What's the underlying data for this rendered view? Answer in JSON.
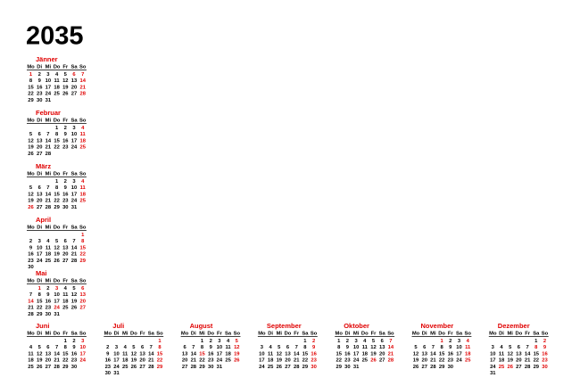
{
  "title": "2035",
  "weekdays": [
    "Mo",
    "Di",
    "Mi",
    "Do",
    "Fr",
    "Sa",
    "So"
  ],
  "highlight_color": "#e00000",
  "months": [
    {
      "name": "Jänner",
      "holidays": [
        1,
        6
      ],
      "weeks": [
        [
          1,
          2,
          3,
          4,
          5,
          6,
          7
        ],
        [
          8,
          9,
          10,
          11,
          12,
          13,
          14
        ],
        [
          15,
          16,
          17,
          18,
          19,
          20,
          21
        ],
        [
          22,
          23,
          24,
          25,
          26,
          27,
          28
        ],
        [
          29,
          30,
          31,
          null,
          null,
          null,
          null
        ]
      ]
    },
    {
      "name": "Februar",
      "holidays": [],
      "weeks": [
        [
          null,
          null,
          null,
          1,
          2,
          3,
          4
        ],
        [
          5,
          6,
          7,
          8,
          9,
          10,
          11
        ],
        [
          12,
          13,
          14,
          15,
          16,
          17,
          18
        ],
        [
          19,
          20,
          21,
          22,
          23,
          24,
          25
        ],
        [
          26,
          27,
          28,
          null,
          null,
          null,
          null
        ]
      ]
    },
    {
      "name": "März",
      "holidays": [
        26
      ],
      "weeks": [
        [
          null,
          null,
          null,
          1,
          2,
          3,
          4
        ],
        [
          5,
          6,
          7,
          8,
          9,
          10,
          11
        ],
        [
          12,
          13,
          14,
          15,
          16,
          17,
          18
        ],
        [
          19,
          20,
          21,
          22,
          23,
          24,
          25
        ],
        [
          26,
          27,
          28,
          29,
          30,
          31,
          null
        ]
      ]
    },
    {
      "name": "April",
      "holidays": [],
      "weeks": [
        [
          null,
          null,
          null,
          null,
          null,
          null,
          1
        ],
        [
          2,
          3,
          4,
          5,
          6,
          7,
          8
        ],
        [
          9,
          10,
          11,
          12,
          13,
          14,
          15
        ],
        [
          16,
          17,
          18,
          19,
          20,
          21,
          22
        ],
        [
          23,
          24,
          25,
          26,
          27,
          28,
          29
        ],
        [
          30,
          null,
          null,
          null,
          null,
          null,
          null
        ]
      ]
    },
    {
      "name": "Mai",
      "holidays": [
        1,
        3,
        14,
        24
      ],
      "weeks": [
        [
          null,
          1,
          2,
          3,
          4,
          5,
          6
        ],
        [
          7,
          8,
          9,
          10,
          11,
          12,
          13
        ],
        [
          14,
          15,
          16,
          17,
          18,
          19,
          20
        ],
        [
          21,
          22,
          23,
          24,
          25,
          26,
          27
        ],
        [
          28,
          29,
          30,
          31,
          null,
          null,
          null
        ]
      ]
    },
    {
      "name": "Juni",
      "holidays": [],
      "weeks": [
        [
          null,
          null,
          null,
          null,
          1,
          2,
          3
        ],
        [
          4,
          5,
          6,
          7,
          8,
          9,
          10
        ],
        [
          11,
          12,
          13,
          14,
          15,
          16,
          17
        ],
        [
          18,
          19,
          20,
          21,
          22,
          23,
          24
        ],
        [
          25,
          26,
          27,
          28,
          29,
          30,
          null
        ]
      ]
    },
    {
      "name": "Juli",
      "holidays": [],
      "weeks": [
        [
          null,
          null,
          null,
          null,
          null,
          null,
          1
        ],
        [
          2,
          3,
          4,
          5,
          6,
          7,
          8
        ],
        [
          9,
          10,
          11,
          12,
          13,
          14,
          15
        ],
        [
          16,
          17,
          18,
          19,
          20,
          21,
          22
        ],
        [
          23,
          24,
          25,
          26,
          27,
          28,
          29
        ],
        [
          30,
          31,
          null,
          null,
          null,
          null,
          null
        ]
      ]
    },
    {
      "name": "August",
      "holidays": [
        15
      ],
      "weeks": [
        [
          null,
          null,
          1,
          2,
          3,
          4,
          5
        ],
        [
          6,
          7,
          8,
          9,
          10,
          11,
          12
        ],
        [
          13,
          14,
          15,
          16,
          17,
          18,
          19
        ],
        [
          20,
          21,
          22,
          23,
          24,
          25,
          26
        ],
        [
          27,
          28,
          29,
          30,
          31,
          null,
          null
        ]
      ]
    },
    {
      "name": "September",
      "holidays": [],
      "weeks": [
        [
          null,
          null,
          null,
          null,
          null,
          1,
          2
        ],
        [
          3,
          4,
          5,
          6,
          7,
          8,
          9
        ],
        [
          10,
          11,
          12,
          13,
          14,
          15,
          16
        ],
        [
          17,
          18,
          19,
          20,
          21,
          22,
          23
        ],
        [
          24,
          25,
          26,
          27,
          28,
          29,
          30
        ]
      ]
    },
    {
      "name": "Oktober",
      "holidays": [
        26
      ],
      "weeks": [
        [
          1,
          2,
          3,
          4,
          5,
          6,
          7
        ],
        [
          8,
          9,
          10,
          11,
          12,
          13,
          14
        ],
        [
          15,
          16,
          17,
          18,
          19,
          20,
          21
        ],
        [
          22,
          23,
          24,
          25,
          26,
          27,
          28
        ],
        [
          29,
          30,
          31,
          null,
          null,
          null,
          null
        ]
      ]
    },
    {
      "name": "November",
      "holidays": [
        1
      ],
      "weeks": [
        [
          null,
          null,
          null,
          1,
          2,
          3,
          4
        ],
        [
          5,
          6,
          7,
          8,
          9,
          10,
          11
        ],
        [
          12,
          13,
          14,
          15,
          16,
          17,
          18
        ],
        [
          19,
          20,
          21,
          22,
          23,
          24,
          25
        ],
        [
          26,
          27,
          28,
          29,
          30,
          null,
          null
        ]
      ]
    },
    {
      "name": "Dezember",
      "holidays": [
        8,
        25,
        26
      ],
      "weeks": [
        [
          null,
          null,
          null,
          null,
          null,
          1,
          2
        ],
        [
          3,
          4,
          5,
          6,
          7,
          8,
          9
        ],
        [
          10,
          11,
          12,
          13,
          14,
          15,
          16
        ],
        [
          17,
          18,
          19,
          20,
          21,
          22,
          23
        ],
        [
          24,
          25,
          26,
          27,
          28,
          29,
          30
        ],
        [
          31,
          null,
          null,
          null,
          null,
          null,
          null
        ]
      ]
    }
  ]
}
